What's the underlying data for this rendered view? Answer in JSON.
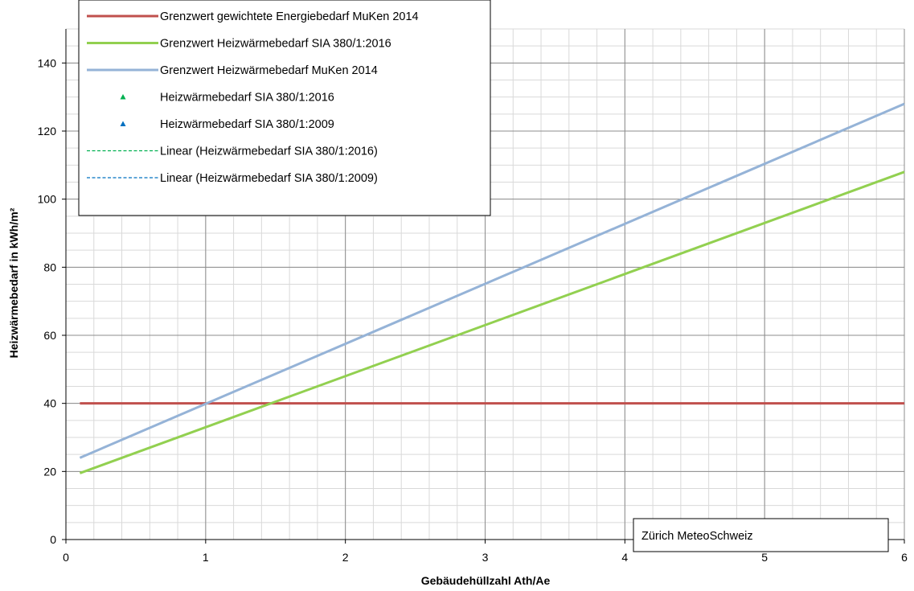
{
  "chart_data": {
    "type": "line",
    "xlabel": "Gebäudehüllzahl Ath/Ae",
    "ylabel": "Heizwärmebedarf in kWh/m²",
    "xlim": [
      0,
      6
    ],
    "ylim": [
      0,
      150
    ],
    "x_ticks": [
      "0",
      "1",
      "2",
      "3",
      "4",
      "5",
      "6"
    ],
    "y_ticks": [
      "0",
      "20",
      "40",
      "60",
      "80",
      "100",
      "120",
      "140"
    ],
    "grid": true,
    "legend_position": "top-left",
    "series": [
      {
        "name": "Grenzwert gewichtete Energiebedarf MuKen 2014",
        "color": "#c0504d",
        "style": "solid",
        "x": [
          0.1,
          6
        ],
        "y": [
          40,
          40
        ]
      },
      {
        "name": "Grenzwert Heizwärmebedarf SIA 380/1:2016",
        "color": "#92d050",
        "style": "solid",
        "x": [
          0.1,
          6
        ],
        "y": [
          19.5,
          108
        ]
      },
      {
        "name": "Grenzwert Heizwärmebedarf MuKen 2014",
        "color": "#95b3d7",
        "style": "solid",
        "x": [
          0.1,
          6
        ],
        "y": [
          24,
          128
        ]
      },
      {
        "name": "Heizwärmebedarf  SIA 380/1:2016",
        "color": "#00b050",
        "style": "marker",
        "x": [],
        "y": []
      },
      {
        "name": "Heizwärmebedarf  SIA 380/1:2009",
        "color": "#0070c0",
        "style": "marker",
        "x": [],
        "y": []
      },
      {
        "name": "Linear (Heizwärmebedarf  SIA 380/1:2016)",
        "color": "#00b050",
        "style": "dashed",
        "x": [],
        "y": []
      },
      {
        "name": "Linear (Heizwärmebedarf  SIA 380/1:2009)",
        "color": "#0070c0",
        "style": "dashed",
        "x": [],
        "y": []
      }
    ],
    "annotation": "Zürich MeteoSchweiz"
  }
}
